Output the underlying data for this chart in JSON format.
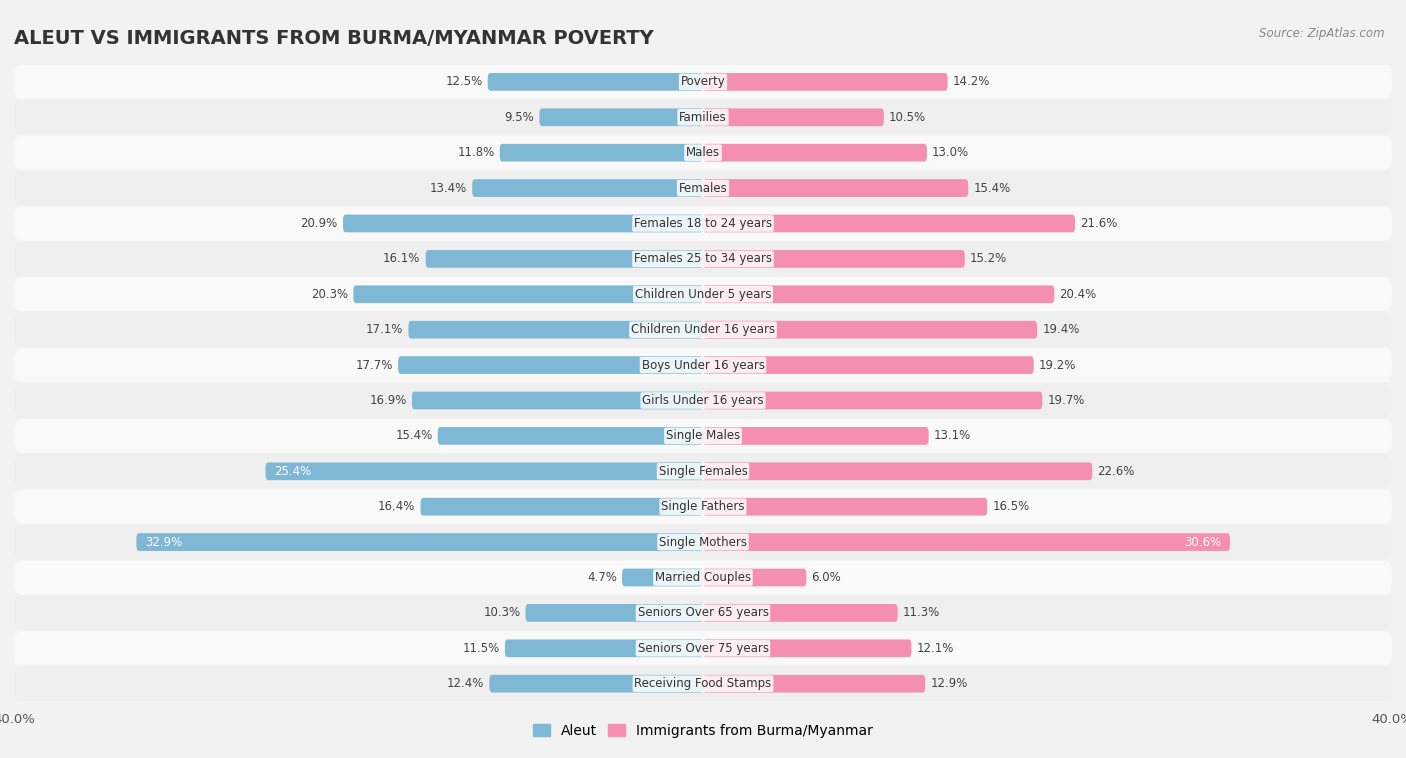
{
  "title": "ALEUT VS IMMIGRANTS FROM BURMA/MYANMAR POVERTY",
  "source": "Source: ZipAtlas.com",
  "categories": [
    "Poverty",
    "Families",
    "Males",
    "Females",
    "Females 18 to 24 years",
    "Females 25 to 34 years",
    "Children Under 5 years",
    "Children Under 16 years",
    "Boys Under 16 years",
    "Girls Under 16 years",
    "Single Males",
    "Single Females",
    "Single Fathers",
    "Single Mothers",
    "Married Couples",
    "Seniors Over 65 years",
    "Seniors Over 75 years",
    "Receiving Food Stamps"
  ],
  "aleut_values": [
    12.5,
    9.5,
    11.8,
    13.4,
    20.9,
    16.1,
    20.3,
    17.1,
    17.7,
    16.9,
    15.4,
    25.4,
    16.4,
    32.9,
    4.7,
    10.3,
    11.5,
    12.4
  ],
  "burma_values": [
    14.2,
    10.5,
    13.0,
    15.4,
    21.6,
    15.2,
    20.4,
    19.4,
    19.2,
    19.7,
    13.1,
    22.6,
    16.5,
    30.6,
    6.0,
    11.3,
    12.1,
    12.9
  ],
  "aleut_color": "#7eb8d4",
  "burma_color": "#f48fb1",
  "background_color": "#f2f2f2",
  "row_bg_even": "#f9f9f9",
  "row_bg_odd": "#efefef",
  "xlim": 40.0,
  "legend_labels": [
    "Aleut",
    "Immigrants from Burma/Myanmar"
  ],
  "bar_height": 0.5,
  "label_fontsize": 8.5,
  "cat_fontsize": 8.5,
  "title_fontsize": 14
}
